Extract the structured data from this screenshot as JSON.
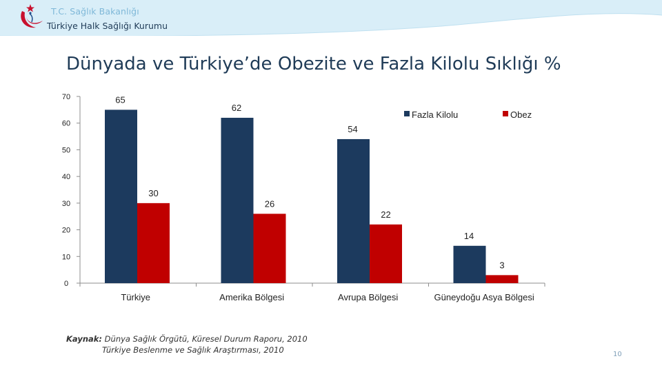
{
  "header": {
    "title": "T.C. Sağlık Bakanlığı",
    "subtitle": "Türkiye Halk Sağlığı Kurumu"
  },
  "slide": {
    "title": "Dünyada ve Türkiye’de Obezite ve Fazla Kilolu Sıklığı %",
    "source_label": "Kaynak:",
    "source_line1": " Dünya Sağlık Örgütü, Küresel Durum Raporu, 2010",
    "source_line2": "Türkiye Beslenme ve Sağlık Araştırması,  2010",
    "page_number": "10"
  },
  "colors": {
    "fazla_kilolu": "#1c3a5e",
    "obez": "#c00000",
    "header_wave": "#d6ecf7",
    "title": "#1f3b57"
  },
  "chart_data": {
    "type": "bar",
    "categories": [
      "Türkiye",
      "Amerika Bölgesi",
      "Avrupa Bölgesi",
      "Güneydoğu Asya Bölgesi"
    ],
    "series": [
      {
        "name": "Fazla Kilolu",
        "values": [
          65,
          62,
          54,
          14
        ]
      },
      {
        "name": "Obez",
        "values": [
          30,
          26,
          22,
          3
        ]
      }
    ],
    "ylim": [
      0,
      70
    ],
    "yticks": [
      0,
      10,
      20,
      30,
      40,
      50,
      60,
      70
    ],
    "legend_position": "top-right",
    "grid": false
  }
}
